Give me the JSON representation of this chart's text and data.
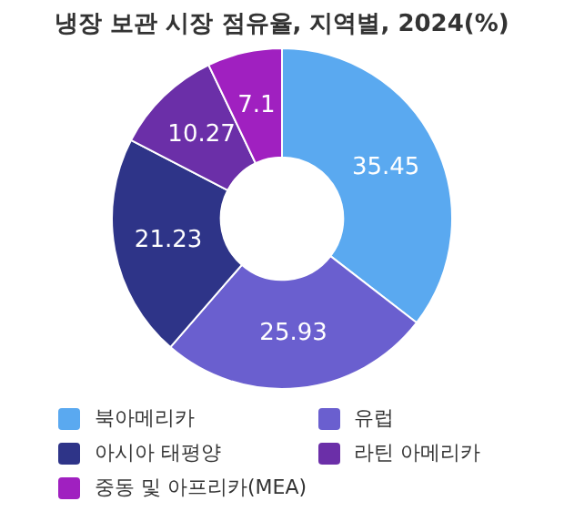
{
  "chart_data": {
    "type": "donut",
    "title": "냉장 보관 시장 점유율, 지역별, 2024(%)",
    "categories": [
      "북아메리카",
      "유럽",
      "아시아 태평양",
      "라틴 아메리카",
      "중동 및 아프리카(MEA)"
    ],
    "values": [
      35.45,
      25.93,
      21.23,
      10.27,
      7.1
    ],
    "colors": [
      "#5aa9f0",
      "#6a5fcf",
      "#2e3488",
      "#6b2fa8",
      "#a020c0"
    ],
    "data_labels": true,
    "legend": "bottom"
  }
}
